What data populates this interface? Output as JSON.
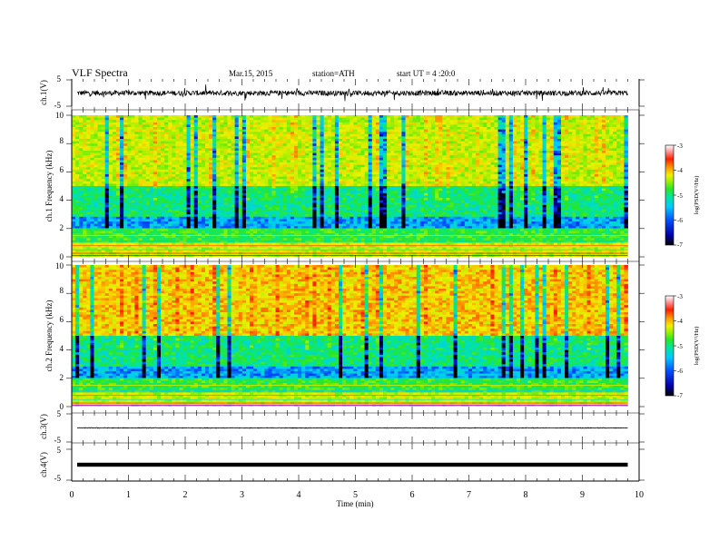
{
  "header": {
    "title": "VLF Spectra",
    "date": "Mar.15, 2015",
    "station": "station=ATH",
    "start": "start UT = 4 :20:0"
  },
  "colors": {
    "frame": "#000000",
    "spectrogram_scale": [
      "#1a1a1a",
      "#0000aa",
      "#0050ff",
      "#00b4ff",
      "#00e6b4",
      "#00e650",
      "#78f000",
      "#e6e600",
      "#ffa000",
      "#ff3000",
      "#ff9090",
      "#ffe6e6"
    ]
  },
  "chart_data": [
    {
      "type": "line",
      "panel": "ch1",
      "ylabel": "ch.1(V)",
      "yticks": [
        "5",
        "-5"
      ],
      "ylim": [
        -5,
        5
      ],
      "xlim": [
        0,
        10
      ],
      "signal_extent_min": 9.8,
      "series": [
        {
          "baseline": 0,
          "noise_amplitude": 1.0,
          "color": "#000000"
        }
      ]
    },
    {
      "type": "heatmap",
      "panel": "ch1-spectrogram",
      "ylabel": "ch.1 Frequency (kHz)",
      "yticks": [
        "0",
        "2",
        "4",
        "6",
        "8",
        "10"
      ],
      "ylim": [
        0,
        10
      ],
      "xlim": [
        0,
        10
      ],
      "colorbar": {
        "label": "log(PSD(V²/Hz)",
        "ticks": [
          "-3",
          "-4",
          "-5",
          "-6",
          "-7"
        ],
        "range": [
          -7,
          -3
        ]
      }
    },
    {
      "type": "heatmap",
      "panel": "ch2-spectrogram",
      "ylabel": "ch.2 Frequency (kHz)",
      "yticks": [
        "0",
        "2",
        "4",
        "6",
        "8",
        "10"
      ],
      "ylim": [
        0,
        10
      ],
      "xlim": [
        0,
        10
      ],
      "colorbar": {
        "label": "log(PSD(V²/Hz)",
        "ticks": [
          "-3",
          "-4",
          "-5",
          "-6",
          "-7"
        ],
        "range": [
          -7,
          -3
        ]
      }
    },
    {
      "type": "line",
      "panel": "ch3",
      "ylabel": "ch.3(V)",
      "yticks": [
        "5",
        "-5"
      ],
      "ylim": [
        -5,
        5
      ],
      "xlim": [
        0,
        10
      ],
      "series": [
        {
          "baseline": 0,
          "noise_amplitude": 0.1,
          "color": "#000000"
        }
      ]
    },
    {
      "type": "line",
      "panel": "ch4",
      "ylabel": "ch.4(V)",
      "yticks": [
        "5",
        "-5"
      ],
      "ylim": [
        -5,
        5
      ],
      "xlim": [
        0,
        10
      ],
      "series": [
        {
          "baseline": 0,
          "noise_amplitude": 0.3,
          "color": "#000000"
        }
      ]
    }
  ],
  "xaxis": {
    "label": "Time (min)",
    "ticks": [
      "0",
      "1",
      "2",
      "3",
      "4",
      "5",
      "6",
      "7",
      "8",
      "9",
      "10"
    ],
    "range": [
      0,
      10
    ]
  }
}
